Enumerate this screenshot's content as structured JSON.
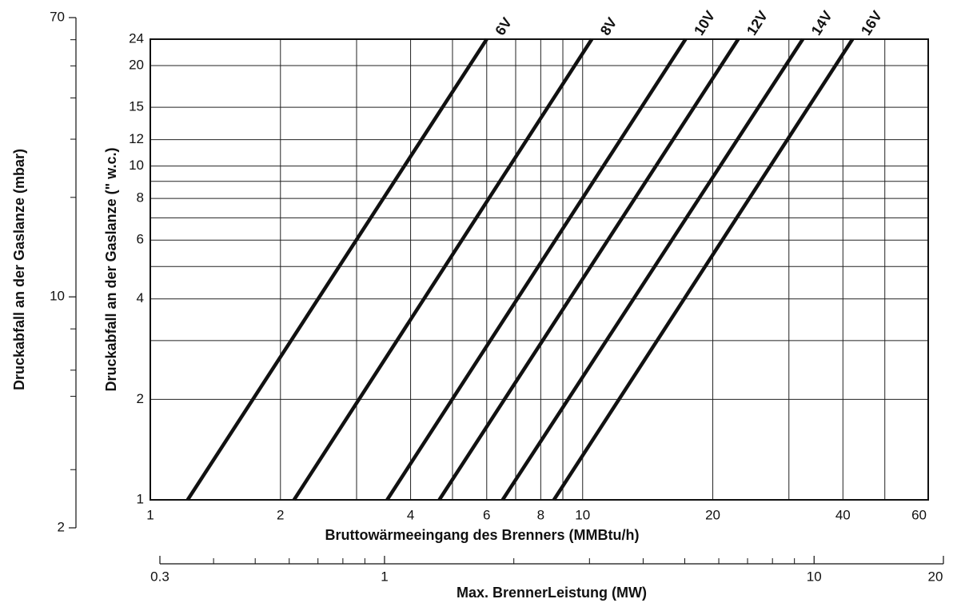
{
  "chart_data": {
    "type": "line",
    "xlabel": "Bruttowärmeeingang des Brenners (MMBtu/h)",
    "ylabel": "Druckabfall an der Gaslanze (\" w.c.)",
    "y2label": "Druckabfall an der Gaslanze (mbar)",
    "x2label": "Max. BrennerLeistung (MW)",
    "xscale": "log",
    "yscale": "log",
    "grid": true,
    "xlim": [
      1,
      63
    ],
    "xticks": [
      1,
      2,
      4,
      6,
      8,
      10,
      20,
      40,
      60
    ],
    "xminor": [
      2,
      3,
      4,
      5,
      6,
      7,
      8,
      9,
      10,
      20,
      30,
      40,
      50
    ],
    "ylim": [
      1,
      24
    ],
    "yticks": [
      1,
      2,
      4,
      6,
      8,
      10,
      12,
      15,
      20,
      24
    ],
    "yminor": [
      2,
      3,
      4,
      5,
      6,
      7,
      8,
      9,
      10,
      12,
      15,
      20
    ],
    "y2lim": [
      2,
      70
    ],
    "y2ticks": [
      2,
      10,
      70
    ],
    "y2minor": [
      3,
      5,
      6,
      8,
      20,
      30,
      40,
      50,
      60
    ],
    "x2lim": [
      0.3,
      20
    ],
    "x2ticks": [
      0.3,
      1,
      10,
      20
    ],
    "x2minor": [
      0.4,
      0.5,
      0.6,
      0.7,
      0.8,
      0.9,
      2,
      3,
      4,
      5,
      6,
      7,
      8,
      9
    ],
    "series": [
      {
        "name": "6V",
        "color": "#111111",
        "x": [
          1.22,
          6.0
        ],
        "values": [
          1,
          24
        ]
      },
      {
        "name": "8V",
        "color": "#111111",
        "x": [
          2.15,
          10.5
        ],
        "values": [
          1,
          24
        ]
      },
      {
        "name": "10V",
        "color": "#111111",
        "x": [
          3.53,
          17.3
        ],
        "values": [
          1,
          24
        ]
      },
      {
        "name": "12V",
        "color": "#111111",
        "x": [
          4.66,
          22.9
        ],
        "values": [
          1,
          24
        ]
      },
      {
        "name": "14V",
        "color": "#111111",
        "x": [
          6.53,
          32.3
        ],
        "values": [
          1,
          24
        ]
      },
      {
        "name": "16V",
        "color": "#111111",
        "x": [
          8.58,
          42.1
        ],
        "values": [
          1,
          24
        ]
      }
    ]
  }
}
